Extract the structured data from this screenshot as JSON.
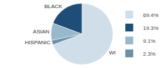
{
  "chart_data": {
    "type": "pie",
    "categories": [
      "WHITE",
      "BLACK",
      "ASIAN",
      "HISPANIC"
    ],
    "values": [
      69.4,
      19.3,
      9.1,
      2.3
    ],
    "value_labels": [
      "69.4%",
      "19.3%",
      "9.1%",
      "2.3%"
    ],
    "colors": [
      "#cfdee8",
      "#1e4d78",
      "#9ab8cc",
      "#6b8fa8"
    ],
    "legend": "right"
  }
}
